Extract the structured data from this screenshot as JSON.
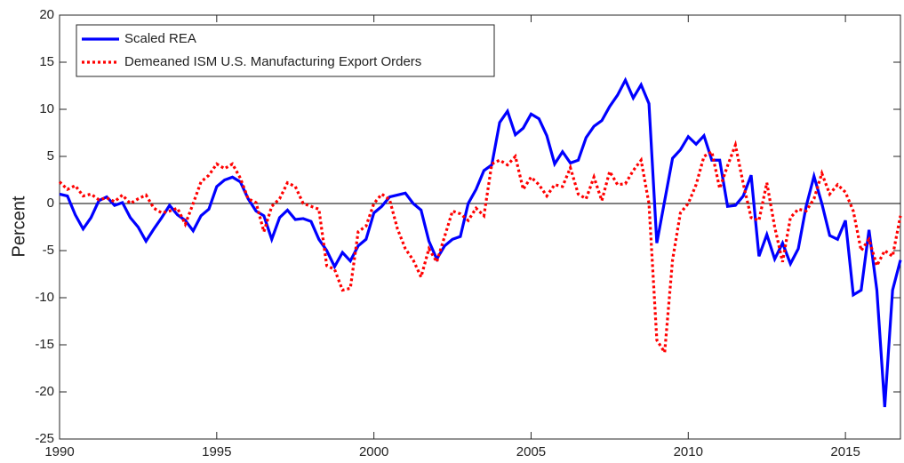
{
  "chart_data": {
    "type": "line",
    "ylabel": "Percent",
    "x": [
      1990,
      1990.25,
      1990.5,
      1990.75,
      1991,
      1991.25,
      1991.5,
      1991.75,
      1992,
      1992.25,
      1992.5,
      1992.75,
      1993,
      1993.25,
      1993.5,
      1993.75,
      1994,
      1994.25,
      1994.5,
      1994.75,
      1995,
      1995.25,
      1995.5,
      1995.75,
      1996,
      1996.25,
      1996.5,
      1996.75,
      1997,
      1997.25,
      1997.5,
      1997.75,
      1998,
      1998.25,
      1998.5,
      1998.75,
      1999,
      1999.25,
      1999.5,
      1999.75,
      2000,
      2000.25,
      2000.5,
      2000.75,
      2001,
      2001.25,
      2001.5,
      2001.75,
      2002,
      2002.25,
      2002.5,
      2002.75,
      2003,
      2003.25,
      2003.5,
      2003.75,
      2004,
      2004.25,
      2004.5,
      2004.75,
      2005,
      2005.25,
      2005.5,
      2005.75,
      2006,
      2006.25,
      2006.5,
      2006.75,
      2007,
      2007.25,
      2007.5,
      2007.75,
      2008,
      2008.25,
      2008.5,
      2008.75,
      2009,
      2009.25,
      2009.5,
      2009.75,
      2010,
      2010.25,
      2010.5,
      2010.75,
      2011,
      2011.25,
      2011.5,
      2011.75,
      2012,
      2012.25,
      2012.5,
      2012.75,
      2013,
      2013.25,
      2013.5,
      2013.75,
      2014,
      2014.25,
      2014.5,
      2014.75,
      2015,
      2015.25,
      2015.5,
      2015.75,
      2016,
      2016.25,
      2016.5,
      2016.75
    ],
    "series": [
      {
        "name": "Scaled REA",
        "color": "#0000ff",
        "dash": false,
        "values": [
          1.0,
          0.8,
          -1.2,
          -2.7,
          -1.5,
          0.3,
          0.7,
          -0.2,
          0.1,
          -1.5,
          -2.5,
          -4.0,
          -2.7,
          -1.5,
          -0.2,
          -1.2,
          -1.8,
          -2.9,
          -1.3,
          -0.6,
          1.8,
          2.5,
          2.8,
          2.3,
          0.5,
          -0.8,
          -1.3,
          -3.8,
          -1.5,
          -0.7,
          -1.7,
          -1.6,
          -1.9,
          -3.8,
          -5.0,
          -6.7,
          -5.2,
          -6.1,
          -4.5,
          -3.8,
          -1.0,
          -0.3,
          0.7,
          0.9,
          1.1,
          0.0,
          -0.7,
          -4.0,
          -5.9,
          -4.5,
          -3.8,
          -3.5,
          0.0,
          1.5,
          3.5,
          4.1,
          8.6,
          9.8,
          7.3,
          8.0,
          9.5,
          9.0,
          7.2,
          4.2,
          5.5,
          4.3,
          4.6,
          7.0,
          8.2,
          8.8,
          10.3,
          11.5,
          13.1,
          11.2,
          12.6,
          10.6,
          -4.2,
          0.3,
          4.8,
          5.7,
          7.1,
          6.3,
          7.2,
          4.6,
          4.6,
          -0.3,
          -0.2,
          0.8,
          3.0,
          -5.6,
          -3.3,
          -5.9,
          -4.2,
          -6.4,
          -4.8,
          -0.3,
          2.9,
          0.0,
          -3.4,
          -3.8,
          -1.8,
          -9.7,
          -9.2,
          -2.8,
          -9.2,
          -21.6,
          -9.2,
          -6.0
        ]
      },
      {
        "name": "Demeaned ISM U.S. Manufacturing Export Orders",
        "color": "#ff0000",
        "dash": true,
        "values": [
          2.3,
          1.5,
          1.9,
          0.8,
          1.0,
          0.4,
          0.6,
          0.2,
          0.9,
          0.0,
          0.5,
          0.9,
          -0.5,
          -1.0,
          -0.8,
          -0.5,
          -2.2,
          0.0,
          2.3,
          3.0,
          4.2,
          3.7,
          4.2,
          2.7,
          0.5,
          0.1,
          -3.0,
          -0.3,
          0.5,
          2.2,
          1.8,
          0.0,
          -0.3,
          -0.6,
          -6.6,
          -7.0,
          -9.2,
          -9.0,
          -3.0,
          -2.4,
          0.0,
          1.0,
          0.4,
          -2.7,
          -4.8,
          -6.0,
          -7.8,
          -4.8,
          -6.2,
          -3.5,
          -0.8,
          -1.1,
          -1.8,
          -0.5,
          -1.3,
          4.2,
          4.6,
          4.1,
          5.0,
          1.5,
          2.8,
          2.0,
          0.8,
          2.0,
          1.8,
          3.8,
          1.0,
          0.5,
          2.8,
          0.3,
          3.4,
          2.0,
          2.1,
          3.5,
          4.6,
          0.0,
          -14.5,
          -15.8,
          -6.0,
          -1.0,
          0.0,
          2.0,
          5.0,
          5.5,
          1.6,
          4.0,
          6.2,
          2.1,
          -1.5,
          -1.8,
          2.2,
          -2.5,
          -6.2,
          -1.5,
          -0.6,
          -0.8,
          0.5,
          3.2,
          1.0,
          2.0,
          1.2,
          -0.8,
          -5.0,
          -3.8,
          -6.6,
          -5.0,
          -5.6,
          -1.3
        ]
      }
    ],
    "xlim": [
      1990,
      2016.75
    ],
    "xticks": [
      1990,
      1995,
      2000,
      2005,
      2010,
      2015
    ],
    "ylim": [
      -25,
      20
    ],
    "yticks": [
      -25,
      -20,
      -15,
      -10,
      -5,
      0,
      5,
      10,
      15,
      20
    ],
    "zero_line": true,
    "legend": "upper-left"
  }
}
